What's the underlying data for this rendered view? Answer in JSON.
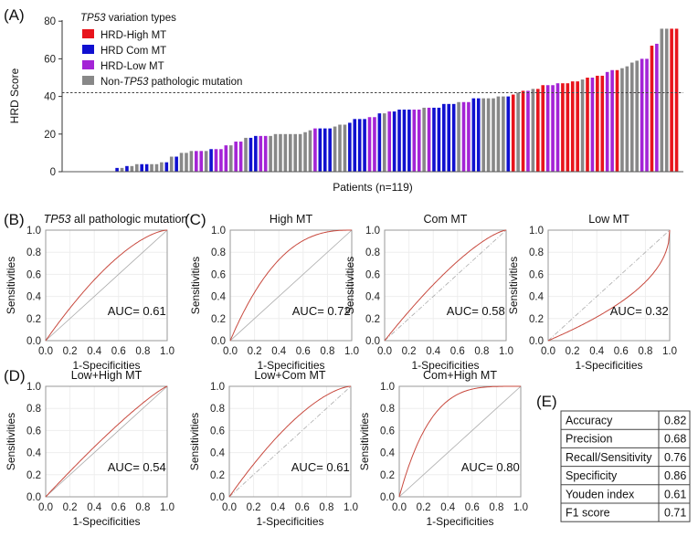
{
  "chart_data": [
    {
      "type": "bar",
      "panel_label": "(A)",
      "ylabel": "HRD Score",
      "xlabel": "Patients (n=119)",
      "ylim": [
        0,
        80
      ],
      "yticks": [
        "0",
        "20",
        "40",
        "60",
        "80"
      ],
      "threshold": 42,
      "legend": {
        "title_italic": "TP53",
        "title_rest": " variation types",
        "placement": "top-left",
        "entries": [
          {
            "key": "high",
            "label": "HRD-High MT",
            "color": "#e8141c"
          },
          {
            "key": "com",
            "label": "HRD Com MT",
            "color": "#1010d0"
          },
          {
            "key": "low",
            "label": "HRD-Low MT",
            "color": "#a424d6"
          },
          {
            "key": "non",
            "label_pre": "Non-",
            "label_italic": "TP53",
            "label_post": " pathologic mutation",
            "color": "#888888"
          }
        ]
      },
      "values": [
        0,
        0,
        0,
        0,
        0,
        2,
        2,
        3,
        3,
        4,
        4,
        4,
        4,
        4,
        5,
        5,
        8,
        8,
        10,
        10,
        11,
        11,
        11,
        11,
        12,
        12,
        12,
        14,
        14,
        16,
        16,
        18,
        18,
        19,
        19,
        19,
        19,
        20,
        20,
        20,
        20,
        20,
        20,
        21,
        22,
        23,
        23,
        23,
        23,
        24,
        25,
        25,
        26,
        28,
        28,
        28,
        29,
        29,
        31,
        31,
        32,
        32,
        33,
        33,
        33,
        33,
        33,
        34,
        34,
        34,
        34,
        36,
        36,
        36,
        37,
        37,
        37,
        39,
        39,
        39,
        39,
        39,
        40,
        40,
        40,
        41,
        42,
        43,
        43,
        44,
        44,
        46,
        46,
        46,
        47,
        47,
        47,
        48,
        48,
        49,
        50,
        50,
        51,
        51,
        53,
        54,
        54,
        55,
        56,
        58,
        59,
        60,
        60,
        67,
        68,
        76,
        76,
        76,
        76
      ],
      "types": [
        "non",
        "non",
        "non",
        "non",
        "non",
        "com",
        "non",
        "com",
        "non",
        "non",
        "com",
        "com",
        "non",
        "non",
        "non",
        "com",
        "non",
        "com",
        "non",
        "non",
        "non",
        "low",
        "low",
        "non",
        "com",
        "low",
        "low",
        "low",
        "non",
        "low",
        "low",
        "non",
        "com",
        "com",
        "low",
        "low",
        "non",
        "non",
        "non",
        "non",
        "non",
        "non",
        "non",
        "non",
        "non",
        "low",
        "com",
        "com",
        "com",
        "non",
        "non",
        "non",
        "com",
        "com",
        "com",
        "com",
        "low",
        "low",
        "com",
        "non",
        "low",
        "com",
        "com",
        "com",
        "com",
        "low",
        "low",
        "non",
        "low",
        "com",
        "com",
        "com",
        "com",
        "com",
        "non",
        "low",
        "low",
        "com",
        "com",
        "non",
        "non",
        "non",
        "non",
        "non",
        "com",
        "high",
        "non",
        "high",
        "low",
        "non",
        "high",
        "high",
        "low",
        "low",
        "low",
        "high",
        "high",
        "high",
        "high",
        "non",
        "high",
        "low",
        "high",
        "high",
        "low",
        "low",
        "high",
        "non",
        "non",
        "non",
        "non",
        "low",
        "low",
        "high",
        "low",
        "non",
        "non",
        "high",
        "high"
      ]
    },
    {
      "type": "line",
      "panel_label": "(B)",
      "title_italic": "TP53",
      "title": " all pathologic  mutation",
      "auc": 0.61,
      "auc_label": "AUC=  0.61",
      "xlabel": "1-Specificities",
      "ylabel": "Sensitivities",
      "xlim": [
        0,
        1
      ],
      "ylim": [
        0,
        1
      ],
      "diag": "solid"
    },
    {
      "type": "line",
      "panel_label": "(C)",
      "title": "High MT",
      "auc": 0.72,
      "auc_label": "AUC=  0.72",
      "xlabel": "1-Specificities",
      "ylabel": "Sensitivities",
      "xlim": [
        0,
        1
      ],
      "ylim": [
        0,
        1
      ],
      "diag": "solid"
    },
    {
      "type": "line",
      "panel_label": "",
      "title": "Com MT",
      "auc": 0.58,
      "auc_label": "AUC=  0.58",
      "xlabel": "1-Specificities",
      "ylabel": "Sensitivities",
      "xlim": [
        0,
        1
      ],
      "ylim": [
        0,
        1
      ],
      "diag": "dashed"
    },
    {
      "type": "line",
      "panel_label": "",
      "title": "Low MT",
      "auc": 0.32,
      "auc_label": "AUC=  0.32",
      "xlabel": "1-Specificities",
      "ylabel": "Sensitivities",
      "xlim": [
        0,
        1
      ],
      "ylim": [
        0,
        1
      ],
      "diag": "dashed"
    },
    {
      "type": "line",
      "panel_label": "(D)",
      "title": "Low+High  MT",
      "auc": 0.54,
      "auc_label": "AUC=  0.54",
      "xlabel": "1-Specificities",
      "ylabel": "Sensitivities",
      "xlim": [
        0,
        1
      ],
      "ylim": [
        0,
        1
      ],
      "diag": "solid"
    },
    {
      "type": "line",
      "panel_label": "",
      "title": "Low+Com  MT",
      "auc": 0.61,
      "auc_label": "AUC=  0.61",
      "xlabel": "1-Specificities",
      "ylabel": "Sensitivities",
      "xlim": [
        0,
        1
      ],
      "ylim": [
        0,
        1
      ],
      "diag": "dashed"
    },
    {
      "type": "line",
      "panel_label": "",
      "title": "Com+High  MT",
      "auc": 0.8,
      "auc_label": "AUC=  0.80",
      "xlabel": "1-Specificities",
      "ylabel": "Sensitivities",
      "xlim": [
        0,
        1
      ],
      "ylim": [
        0,
        1
      ],
      "diag": "solid"
    },
    {
      "type": "table",
      "panel_label": "(E)",
      "rows": [
        [
          "Accuracy",
          "0.82"
        ],
        [
          "Precision",
          "0.68"
        ],
        [
          "Recall/Sensitivity",
          "0.76"
        ],
        [
          "Specificity",
          "0.86"
        ],
        [
          "Youden  index",
          "0.61"
        ],
        [
          "F1 score",
          "0.71"
        ]
      ]
    }
  ],
  "roc_ticks": [
    "0.0",
    "0.2",
    "0.4",
    "0.6",
    "0.8",
    "1.0"
  ],
  "curve_color": "#c8493e"
}
